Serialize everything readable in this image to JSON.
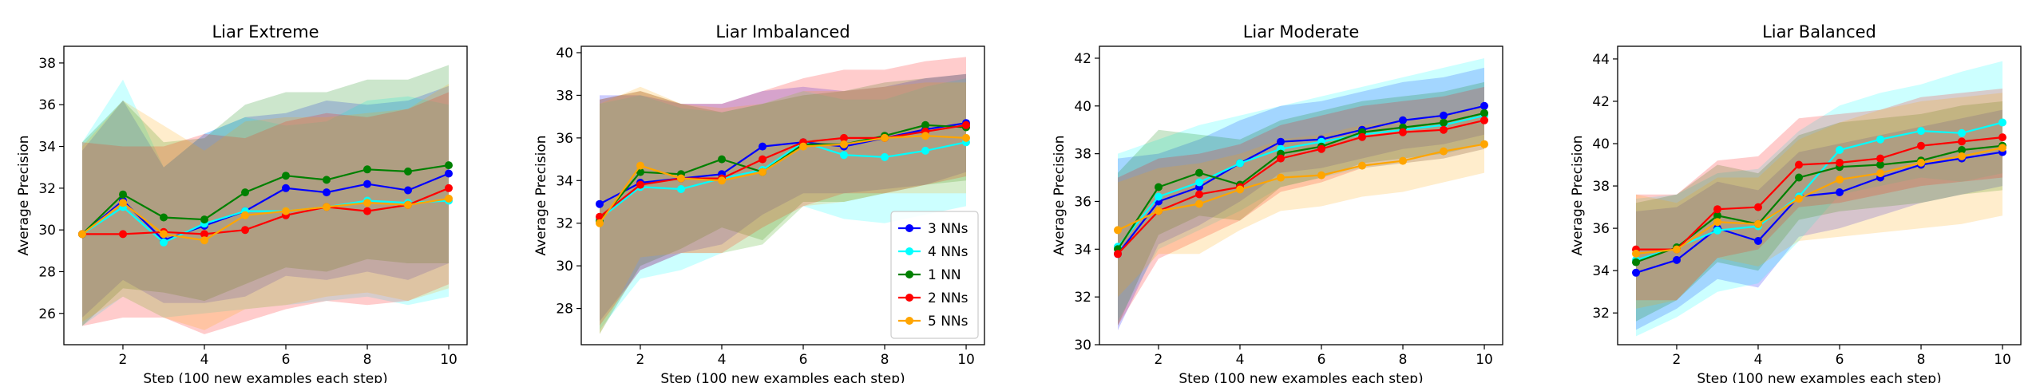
{
  "figure": {
    "shared_xlabel": "Step (100 new examples each step)",
    "shared_ylabel": "Average Precision"
  },
  "legend": {
    "location": "lower right of panel 2",
    "entries": [
      {
        "name": "3 NNs",
        "color": "#0000ff"
      },
      {
        "name": "4 NNs",
        "color": "#00ffff"
      },
      {
        "name": "1 NN",
        "color": "#008000"
      },
      {
        "name": "2 NNs",
        "color": "#ff0000"
      },
      {
        "name": "5 NNs",
        "color": "#ffa500"
      }
    ]
  },
  "chart_data": [
    {
      "type": "line",
      "title": "Liar Extreme",
      "xlabel": "Step (100 new examples each step)",
      "ylabel": "Average Precision",
      "x": [
        1,
        2,
        3,
        4,
        5,
        6,
        7,
        8,
        9,
        10
      ],
      "xlim": [
        0.55,
        10.45
      ],
      "ylim": [
        24.5,
        38.8
      ],
      "xticks": [
        2,
        4,
        6,
        8,
        10
      ],
      "yticks": [
        26,
        28,
        30,
        32,
        34,
        36,
        38
      ],
      "series": [
        {
          "name": "3 NNs",
          "color": "#0000ff",
          "values": [
            29.8,
            31.4,
            29.5,
            30.2,
            30.9,
            32.0,
            31.8,
            32.2,
            31.9,
            32.7
          ],
          "lower": [
            25.8,
            27.6,
            26.5,
            26.5,
            26.8,
            27.8,
            27.6,
            28.0,
            27.6,
            28.4
          ],
          "upper": [
            33.8,
            36.2,
            33.0,
            34.6,
            35.4,
            35.6,
            36.2,
            36.0,
            36.2,
            36.9
          ]
        },
        {
          "name": "4 NNs",
          "color": "#00ffff",
          "values": [
            29.8,
            31.1,
            29.4,
            30.3,
            30.9,
            30.9,
            31.1,
            31.4,
            31.3,
            31.4
          ],
          "lower": [
            25.4,
            26.8,
            25.8,
            26.0,
            26.2,
            26.4,
            26.6,
            26.8,
            26.4,
            26.8
          ],
          "upper": [
            34.2,
            37.2,
            33.0,
            34.6,
            35.4,
            35.0,
            35.2,
            36.2,
            36.4,
            36.0
          ]
        },
        {
          "name": "1 NN",
          "color": "#008000",
          "values": [
            29.8,
            31.7,
            30.6,
            30.5,
            31.8,
            32.6,
            32.4,
            32.9,
            32.8,
            33.1
          ],
          "lower": [
            25.4,
            27.2,
            27.0,
            26.6,
            27.4,
            28.2,
            28.0,
            28.6,
            28.4,
            28.4
          ],
          "upper": [
            34.2,
            36.2,
            34.2,
            34.4,
            36.0,
            36.6,
            36.6,
            37.2,
            37.2,
            37.9
          ]
        },
        {
          "name": "2 NNs",
          "color": "#ff0000",
          "values": [
            29.8,
            29.8,
            29.9,
            29.8,
            30.0,
            30.7,
            31.1,
            30.9,
            31.2,
            32.0
          ],
          "lower": [
            25.4,
            25.8,
            25.8,
            25.0,
            25.6,
            26.2,
            26.6,
            26.4,
            26.6,
            27.4
          ],
          "upper": [
            34.2,
            34.0,
            34.0,
            34.6,
            34.4,
            35.2,
            35.6,
            35.4,
            35.8,
            36.6
          ]
        },
        {
          "name": "5 NNs",
          "color": "#ffa500",
          "values": [
            29.8,
            31.3,
            29.8,
            29.5,
            30.7,
            30.9,
            31.1,
            31.3,
            31.2,
            31.5
          ],
          "lower": [
            25.6,
            26.8,
            25.8,
            25.2,
            26.2,
            26.4,
            26.8,
            27.0,
            26.6,
            27.2
          ],
          "upper": [
            34.0,
            36.2,
            35.0,
            33.8,
            35.2,
            35.4,
            35.4,
            35.6,
            35.8,
            37.0
          ]
        }
      ]
    },
    {
      "type": "line",
      "title": "Liar Imbalanced",
      "xlabel": "Step (100 new examples each step)",
      "ylabel": "Average Precision",
      "x": [
        1,
        2,
        3,
        4,
        5,
        6,
        7,
        8,
        9,
        10
      ],
      "xlim": [
        0.55,
        10.45
      ],
      "ylim": [
        26.3,
        40.3
      ],
      "xticks": [
        2,
        4,
        6,
        8,
        10
      ],
      "yticks": [
        28,
        30,
        32,
        34,
        36,
        38,
        40
      ],
      "series": [
        {
          "name": "3 NNs",
          "color": "#0000ff",
          "values": [
            32.9,
            33.9,
            34.1,
            34.3,
            35.6,
            35.8,
            35.6,
            36.0,
            36.4,
            36.7
          ],
          "lower": [
            27.4,
            29.8,
            30.6,
            31.0,
            32.4,
            33.4,
            33.4,
            33.6,
            33.8,
            34.4
          ],
          "upper": [
            38.0,
            38.0,
            37.6,
            37.6,
            38.2,
            38.4,
            38.2,
            38.4,
            38.8,
            39.0
          ]
        },
        {
          "name": "4 NNs",
          "color": "#00ffff",
          "values": [
            32.2,
            33.7,
            33.6,
            34.1,
            34.5,
            35.8,
            35.2,
            35.1,
            35.4,
            35.8
          ],
          "lower": [
            27.0,
            29.4,
            29.8,
            30.6,
            31.0,
            32.8,
            32.2,
            32.0,
            32.4,
            32.8
          ],
          "upper": [
            37.6,
            38.0,
            37.4,
            37.2,
            37.6,
            38.2,
            37.8,
            37.8,
            38.4,
            38.8
          ]
        },
        {
          "name": "1 NN",
          "color": "#008000",
          "values": [
            32.1,
            34.4,
            34.3,
            35.0,
            34.4,
            35.7,
            35.7,
            36.1,
            36.6,
            36.5
          ],
          "lower": [
            26.8,
            30.0,
            30.8,
            31.8,
            31.2,
            33.0,
            33.0,
            33.4,
            33.8,
            34.0
          ],
          "upper": [
            37.8,
            38.2,
            37.6,
            37.2,
            37.6,
            38.0,
            38.2,
            38.6,
            38.8,
            39.0
          ]
        },
        {
          "name": "2 NNs",
          "color": "#ff0000",
          "values": [
            32.3,
            33.8,
            34.1,
            34.1,
            35.0,
            35.8,
            36.0,
            36.0,
            36.3,
            36.6
          ],
          "lower": [
            27.2,
            29.8,
            30.6,
            30.6,
            31.8,
            32.8,
            33.4,
            33.4,
            33.8,
            34.2
          ],
          "upper": [
            37.8,
            38.2,
            37.6,
            37.6,
            38.2,
            38.8,
            39.2,
            39.2,
            39.6,
            39.8
          ]
        },
        {
          "name": "5 NNs",
          "color": "#ffa500",
          "values": [
            32.0,
            34.7,
            34.1,
            34.0,
            34.4,
            35.6,
            35.7,
            36.0,
            36.1,
            36.0
          ],
          "lower": [
            26.8,
            30.4,
            30.6,
            30.6,
            31.0,
            32.8,
            33.0,
            33.4,
            33.4,
            33.4
          ],
          "upper": [
            37.6,
            38.4,
            37.6,
            37.4,
            37.6,
            38.2,
            38.2,
            38.4,
            38.6,
            38.6
          ]
        }
      ]
    },
    {
      "type": "line",
      "title": "Liar Moderate",
      "xlabel": "Step (100 new examples each step)",
      "ylabel": "Average Precision",
      "x": [
        1,
        2,
        3,
        4,
        5,
        6,
        7,
        8,
        9,
        10
      ],
      "xlim": [
        0.55,
        10.45
      ],
      "ylim": [
        30.0,
        42.5
      ],
      "xticks": [
        2,
        4,
        6,
        8,
        10
      ],
      "yticks": [
        30,
        32,
        34,
        36,
        38,
        40,
        42
      ],
      "series": [
        {
          "name": "3 NNs",
          "color": "#0000ff",
          "values": [
            33.8,
            36.0,
            36.6,
            37.6,
            38.5,
            38.6,
            39.0,
            39.4,
            39.6,
            40.0
          ],
          "lower": [
            30.6,
            34.2,
            35.0,
            36.0,
            37.2,
            37.4,
            37.8,
            38.2,
            38.4,
            38.8
          ],
          "upper": [
            37.8,
            38.0,
            38.6,
            39.4,
            40.0,
            40.2,
            40.6,
            41.0,
            41.2,
            41.6
          ]
        },
        {
          "name": "4 NNs",
          "color": "#00ffff",
          "values": [
            34.1,
            36.2,
            36.8,
            37.6,
            38.2,
            38.5,
            38.8,
            39.0,
            39.2,
            39.6
          ],
          "lower": [
            31.0,
            34.0,
            34.8,
            35.6,
            36.6,
            37.0,
            37.4,
            37.6,
            37.8,
            38.2
          ],
          "upper": [
            38.0,
            38.6,
            39.2,
            39.6,
            40.0,
            40.4,
            40.8,
            41.2,
            41.6,
            42.0
          ]
        },
        {
          "name": "1 NN",
          "color": "#008000",
          "values": [
            34.0,
            36.6,
            37.2,
            36.7,
            38.0,
            38.3,
            38.9,
            39.1,
            39.3,
            39.7
          ],
          "lower": [
            30.8,
            34.6,
            35.4,
            35.2,
            36.6,
            37.0,
            37.6,
            37.8,
            38.0,
            38.4
          ],
          "upper": [
            37.2,
            39.0,
            38.8,
            38.6,
            39.4,
            39.8,
            40.2,
            40.4,
            40.6,
            41.0
          ]
        },
        {
          "name": "2 NNs",
          "color": "#ff0000",
          "values": [
            33.8,
            35.6,
            36.3,
            36.6,
            37.8,
            38.2,
            38.7,
            38.9,
            39.0,
            39.4
          ],
          "lower": [
            30.8,
            33.6,
            34.4,
            35.2,
            36.4,
            36.8,
            37.4,
            37.6,
            37.8,
            38.2
          ],
          "upper": [
            37.0,
            37.8,
            38.0,
            38.4,
            39.2,
            39.6,
            40.0,
            40.2,
            40.4,
            40.8
          ]
        },
        {
          "name": "5 NNs",
          "color": "#ffa500",
          "values": [
            34.8,
            35.6,
            35.9,
            36.5,
            37.0,
            37.1,
            37.5,
            37.7,
            38.1,
            38.4
          ],
          "lower": [
            32.0,
            33.8,
            33.8,
            34.8,
            35.6,
            35.8,
            36.2,
            36.4,
            36.8,
            37.2
          ],
          "upper": [
            36.8,
            37.4,
            37.6,
            38.0,
            38.6,
            38.8,
            39.2,
            39.4,
            39.6,
            40.0
          ]
        }
      ]
    },
    {
      "type": "line",
      "title": "Liar Balanced",
      "xlabel": "Step (100 new examples each step)",
      "ylabel": "Average Precision",
      "x": [
        1,
        2,
        3,
        4,
        5,
        6,
        7,
        8,
        9,
        10
      ],
      "xlim": [
        0.55,
        10.45
      ],
      "ylim": [
        30.5,
        44.6
      ],
      "xticks": [
        2,
        4,
        6,
        8,
        10
      ],
      "yticks": [
        32,
        34,
        36,
        38,
        40,
        42,
        44
      ],
      "series": [
        {
          "name": "3 NNs",
          "color": "#0000ff",
          "values": [
            33.9,
            34.5,
            36.0,
            35.4,
            37.5,
            37.7,
            38.4,
            39.0,
            39.3,
            39.6
          ],
          "lower": [
            31.2,
            32.2,
            33.6,
            33.2,
            35.6,
            36.0,
            36.6,
            37.2,
            37.6,
            38.0
          ],
          "upper": [
            36.8,
            37.0,
            38.2,
            37.8,
            39.6,
            40.0,
            40.4,
            40.8,
            41.2,
            41.6
          ]
        },
        {
          "name": "4 NNs",
          "color": "#00ffff",
          "values": [
            34.5,
            35.1,
            35.9,
            36.1,
            37.5,
            39.7,
            40.2,
            40.6,
            40.5,
            41.0
          ],
          "lower": [
            30.9,
            31.8,
            33.0,
            33.4,
            35.4,
            37.6,
            38.0,
            38.4,
            38.2,
            38.6
          ],
          "upper": [
            37.4,
            37.6,
            38.6,
            38.8,
            40.6,
            41.8,
            42.4,
            42.8,
            43.4,
            43.9
          ]
        },
        {
          "name": "1 NN",
          "color": "#008000",
          "values": [
            34.4,
            35.1,
            36.6,
            36.2,
            38.4,
            38.9,
            39.0,
            39.2,
            39.7,
            39.9
          ],
          "lower": [
            31.6,
            32.6,
            34.4,
            34.0,
            36.4,
            36.8,
            37.0,
            37.2,
            37.6,
            37.8
          ],
          "upper": [
            37.2,
            37.6,
            39.0,
            38.6,
            40.4,
            41.0,
            41.2,
            41.4,
            41.8,
            42.0
          ]
        },
        {
          "name": "2 NNs",
          "color": "#ff0000",
          "values": [
            35.0,
            35.0,
            36.9,
            37.0,
            39.0,
            39.1,
            39.3,
            39.9,
            40.1,
            40.3
          ],
          "lower": [
            32.6,
            32.6,
            34.6,
            35.0,
            37.0,
            37.2,
            37.6,
            38.0,
            38.2,
            38.4
          ],
          "upper": [
            37.6,
            37.6,
            39.2,
            39.4,
            41.2,
            41.4,
            41.6,
            42.2,
            42.4,
            42.6
          ]
        },
        {
          "name": "5 NNs",
          "color": "#ffa500",
          "values": [
            34.8,
            35.0,
            36.3,
            36.2,
            37.4,
            38.3,
            38.6,
            39.1,
            39.4,
            39.8
          ],
          "lower": [
            32.2,
            32.6,
            34.6,
            34.2,
            35.4,
            35.6,
            35.8,
            36.0,
            36.2,
            36.6
          ],
          "upper": [
            37.6,
            37.2,
            38.4,
            38.4,
            40.2,
            41.0,
            41.6,
            42.0,
            42.2,
            42.4
          ]
        }
      ]
    }
  ]
}
